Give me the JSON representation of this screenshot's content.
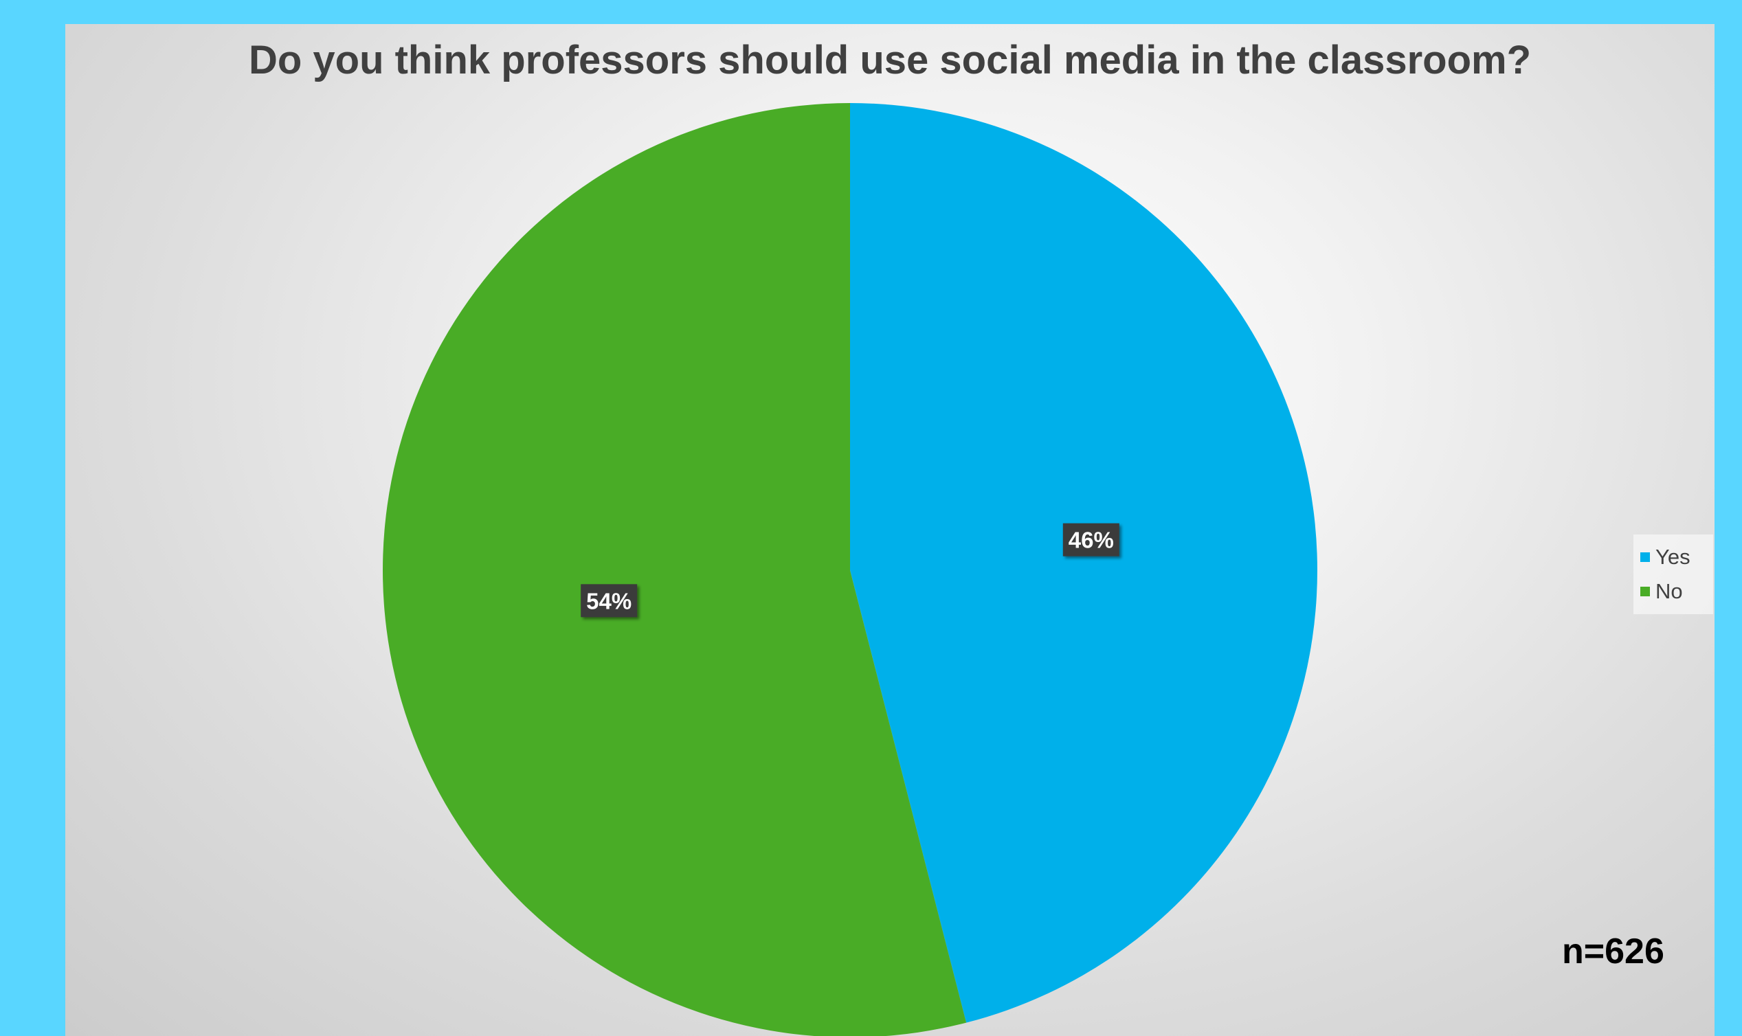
{
  "chart_data": {
    "type": "pie",
    "title": "Do you think professors should use social media in the classroom?",
    "categories": [
      "Yes",
      "No"
    ],
    "values": [
      46,
      54
    ],
    "labels": [
      "46%",
      "54%"
    ],
    "colors": [
      "#00b0ea",
      "#49ac26"
    ],
    "legend": {
      "placement": "right",
      "entries": [
        "Yes",
        "No"
      ]
    },
    "start_angle": "12 o'clock, clockwise",
    "annotation": "n=626"
  }
}
